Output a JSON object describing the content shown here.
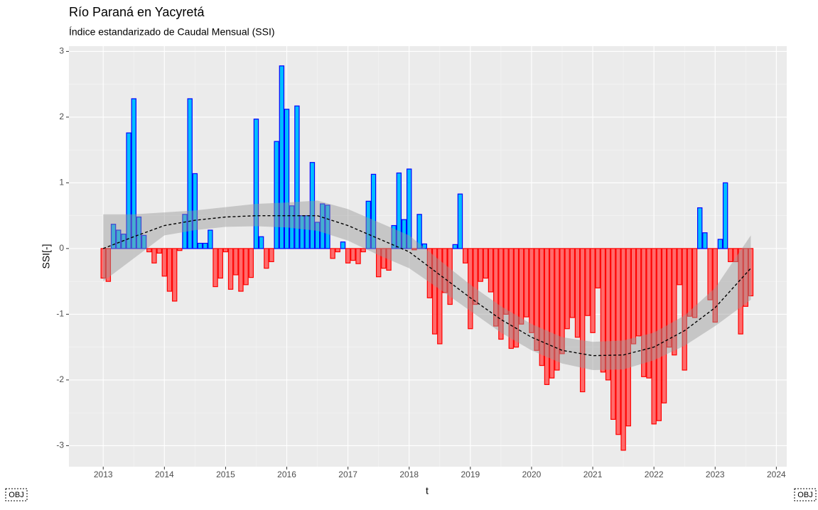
{
  "chart_data": {
    "type": "bar",
    "title": "Río Paraná en Yacyretá",
    "subtitle": "Índice estandarizado de Caudal Mensual (SSI)",
    "x_label": "t",
    "y_label": "SSI[-]",
    "corner_labels": [
      "OBJ",
      "OBJ"
    ],
    "x": [
      2013.0,
      2013.083,
      2013.167,
      2013.25,
      2013.333,
      2013.417,
      2013.5,
      2013.583,
      2013.667,
      2013.75,
      2013.833,
      2013.917,
      2014.0,
      2014.083,
      2014.167,
      2014.25,
      2014.333,
      2014.417,
      2014.5,
      2014.583,
      2014.667,
      2014.75,
      2014.833,
      2014.917,
      2015.0,
      2015.083,
      2015.167,
      2015.25,
      2015.333,
      2015.417,
      2015.5,
      2015.583,
      2015.667,
      2015.75,
      2015.833,
      2015.917,
      2016.0,
      2016.083,
      2016.167,
      2016.25,
      2016.333,
      2016.417,
      2016.5,
      2016.583,
      2016.667,
      2016.75,
      2016.833,
      2016.917,
      2017.0,
      2017.083,
      2017.167,
      2017.25,
      2017.333,
      2017.417,
      2017.5,
      2017.583,
      2017.667,
      2017.75,
      2017.833,
      2017.917,
      2018.0,
      2018.083,
      2018.167,
      2018.25,
      2018.333,
      2018.417,
      2018.5,
      2018.583,
      2018.667,
      2018.75,
      2018.833,
      2018.917,
      2019.0,
      2019.083,
      2019.167,
      2019.25,
      2019.333,
      2019.417,
      2019.5,
      2019.583,
      2019.667,
      2019.75,
      2019.833,
      2019.917,
      2020.0,
      2020.083,
      2020.167,
      2020.25,
      2020.333,
      2020.417,
      2020.5,
      2020.583,
      2020.667,
      2020.75,
      2020.833,
      2020.917,
      2021.0,
      2021.083,
      2021.167,
      2021.25,
      2021.333,
      2021.417,
      2021.5,
      2021.583,
      2021.667,
      2021.75,
      2021.833,
      2021.917,
      2022.0,
      2022.083,
      2022.167,
      2022.25,
      2022.333,
      2022.417,
      2022.5,
      2022.583,
      2022.667,
      2022.75,
      2022.833,
      2022.917,
      2023.0,
      2023.083,
      2023.167,
      2023.25,
      2023.333,
      2023.417,
      2023.5,
      2023.583
    ],
    "values": [
      -0.45,
      -0.5,
      0.37,
      0.28,
      0.22,
      1.76,
      2.28,
      0.48,
      0.2,
      -0.05,
      -0.22,
      -0.07,
      -0.42,
      -0.65,
      -0.8,
      -0.03,
      0.52,
      2.28,
      1.14,
      0.08,
      0.08,
      0.28,
      -0.58,
      -0.45,
      -0.05,
      -0.62,
      -0.4,
      -0.65,
      -0.55,
      -0.44,
      1.97,
      0.18,
      -0.3,
      -0.2,
      1.63,
      2.78,
      2.12,
      0.65,
      2.17,
      0.5,
      0.5,
      1.31,
      0.4,
      0.68,
      0.66,
      -0.15,
      -0.05,
      0.1,
      -0.22,
      -0.18,
      -0.23,
      -0.05,
      0.72,
      1.13,
      -0.43,
      -0.3,
      -0.33,
      0.35,
      1.15,
      0.44,
      1.21,
      -0.02,
      0.52,
      0.07,
      -0.75,
      -1.3,
      -1.45,
      -0.67,
      -0.85,
      0.06,
      0.83,
      -0.22,
      -1.22,
      -0.85,
      -0.5,
      -0.45,
      -0.66,
      -1.18,
      -1.38,
      -1.0,
      -1.52,
      -1.5,
      -1.15,
      -1.04,
      -1.28,
      -1.55,
      -1.78,
      -2.07,
      -1.97,
      -1.85,
      -1.6,
      -1.22,
      -1.05,
      -1.35,
      -2.18,
      -1.02,
      -1.28,
      -0.6,
      -1.88,
      -2.0,
      -2.6,
      -2.83,
      -3.07,
      -2.7,
      -1.45,
      -1.33,
      -1.95,
      -1.97,
      -2.67,
      -2.62,
      -2.35,
      -1.5,
      -1.62,
      -0.55,
      -1.85,
      -1.03,
      -1.05,
      0.62,
      0.24,
      -0.78,
      -1.12,
      0.14,
      1.0,
      -0.2,
      -0.2,
      -1.3,
      -0.88,
      -0.72
    ],
    "positive_color": {
      "fill": "#00bfff",
      "stroke": "#0000ff"
    },
    "negative_color": {
      "fill": "#ff6b6b",
      "stroke": "#ff0000"
    },
    "trend": {
      "x": [
        2013,
        2013.5,
        2014,
        2014.5,
        2015,
        2015.5,
        2016,
        2016.5,
        2017,
        2017.5,
        2018,
        2018.5,
        2019,
        2019.5,
        2020,
        2020.5,
        2021,
        2021.5,
        2022,
        2022.5,
        2023,
        2023.583
      ],
      "values": [
        0.0,
        0.18,
        0.35,
        0.43,
        0.48,
        0.5,
        0.5,
        0.5,
        0.35,
        0.15,
        -0.05,
        -0.4,
        -0.75,
        -1.08,
        -1.35,
        -1.55,
        -1.63,
        -1.62,
        -1.5,
        -1.25,
        -0.9,
        -0.3
      ],
      "lower": [
        -0.5,
        -0.15,
        0.2,
        0.28,
        0.33,
        0.34,
        0.32,
        0.27,
        0.12,
        -0.1,
        -0.3,
        -0.62,
        -0.95,
        -1.28,
        -1.55,
        -1.75,
        -1.85,
        -1.84,
        -1.7,
        -1.48,
        -1.18,
        -0.78
      ],
      "upper": [
        0.52,
        0.52,
        0.55,
        0.58,
        0.63,
        0.68,
        0.7,
        0.73,
        0.6,
        0.4,
        0.2,
        -0.18,
        -0.55,
        -0.88,
        -1.15,
        -1.35,
        -1.42,
        -1.4,
        -1.28,
        -1.02,
        -0.6,
        0.2
      ],
      "color": "#000000",
      "band_color": "#999999"
    },
    "xlim": [
      2012.44,
      2024.17
    ],
    "xticks": [
      2013,
      2014,
      2015,
      2016,
      2017,
      2018,
      2019,
      2020,
      2021,
      2022,
      2023,
      2024
    ],
    "ylim": [
      -3.32,
      3.08
    ],
    "yticks": [
      -3,
      -2,
      -1,
      0,
      1,
      2,
      3
    ],
    "grid": true
  }
}
